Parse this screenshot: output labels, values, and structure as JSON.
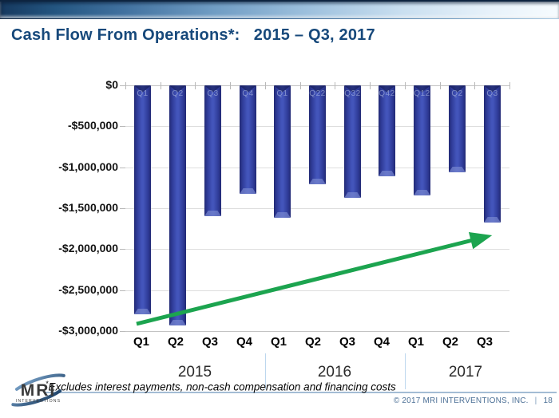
{
  "slide": {
    "title": "Cash Flow From Operations*:   2015 – Q3, 2017"
  },
  "chart_data": {
    "type": "bar",
    "title": "Cash Flow From Operations: 2015 – Q3 2017",
    "categories": [
      "Q1",
      "Q2",
      "Q3",
      "Q4",
      "Q1",
      "Q2",
      "Q3",
      "Q4",
      "Q1",
      "Q2",
      "Q3"
    ],
    "values": [
      -2800000,
      -2930000,
      -1600000,
      -1320000,
      -1620000,
      -1210000,
      -1370000,
      -1110000,
      -1340000,
      -1060000,
      -1680000
    ],
    "faint_bar_labels": [
      "Q1",
      "Q2",
      "Q3",
      "Q4",
      "Q1",
      "Q22",
      "Q32",
      "Q42",
      "Q12",
      "Q2",
      "Q3"
    ],
    "year_groups": [
      {
        "label": "2015",
        "quarters": 4
      },
      {
        "label": "2016",
        "quarters": 4
      },
      {
        "label": "2017",
        "quarters": 3
      }
    ],
    "ylim": [
      -3000000,
      0
    ],
    "ytick_labels": [
      "$0",
      "-$500,000",
      "-$1,000,000",
      "-$1,500,000",
      "-$2,000,000",
      "-$2,500,000",
      "-$3,000,000"
    ],
    "grid": true,
    "legend": "none",
    "bar_color": "#2F3A9D",
    "arrow_color": "#1CA44F",
    "trend_arrow": {
      "from": "Q1 2015 bottom",
      "to": "Q3 2017 bottom",
      "direction": "up-right"
    }
  },
  "footer": {
    "footnote_mark": "*",
    "footnote_text": "Excludes interest payments, non-cash compensation and financing costs",
    "copyright": "© 2017 MRI INTERVENTIONS, INC.",
    "separator": "|",
    "page_number": "18",
    "logo_text": "MRI",
    "logo_subtext": "INTERVENTIONS"
  }
}
